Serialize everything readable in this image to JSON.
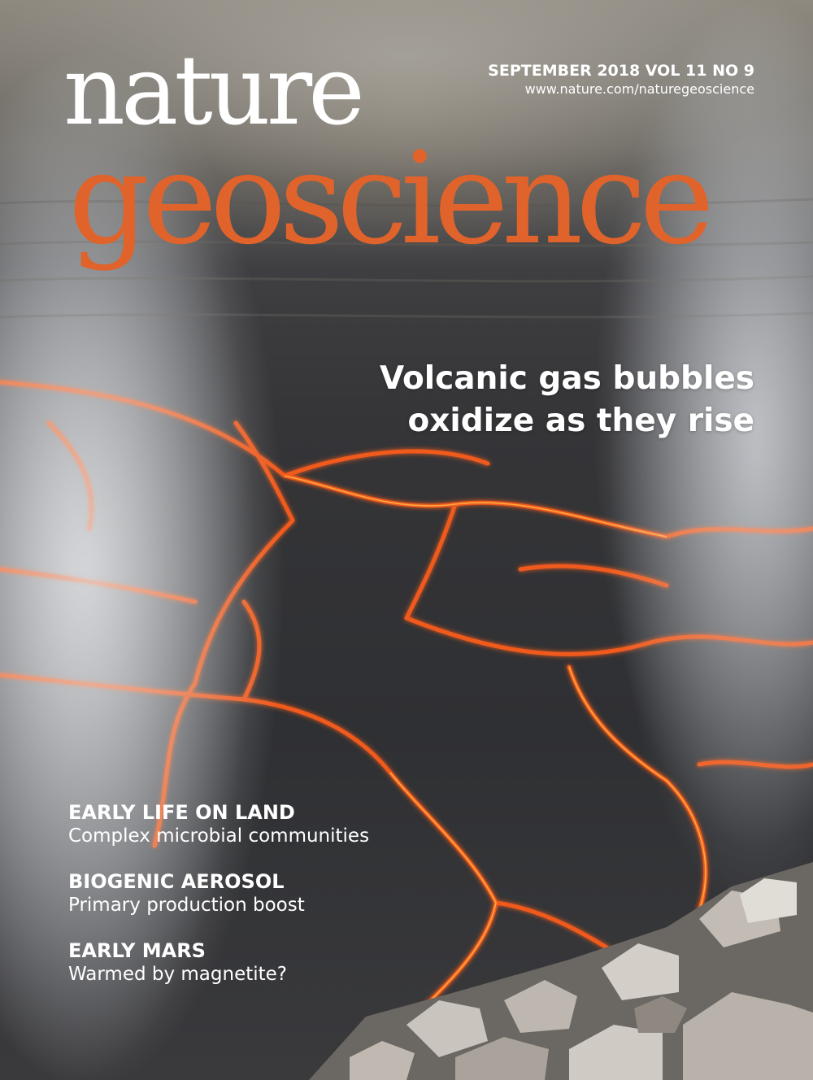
{
  "masthead": {
    "line1": "nature",
    "line2": "geoscience",
    "accent_color": "#e0632b"
  },
  "issue": {
    "date_volume": "SEPTEMBER 2018  VOL 11  NO 9",
    "url": "www.nature.com/naturegeoscience"
  },
  "cover_story": {
    "line1": "Volcanic gas bubbles",
    "line2": "oxidize as they rise"
  },
  "teasers": [
    {
      "title": "EARLY LIFE ON LAND",
      "subtitle": "Complex microbial communities"
    },
    {
      "title": "BIOGENIC AEROSOL",
      "subtitle": "Primary production boost"
    },
    {
      "title": "EARLY MARS",
      "subtitle": "Warmed by magnetite?"
    }
  ],
  "colors": {
    "lava": "#f05a1e",
    "lava_glow": "#ff9a3c",
    "rock": "#2f3033",
    "text": "#ffffff"
  }
}
